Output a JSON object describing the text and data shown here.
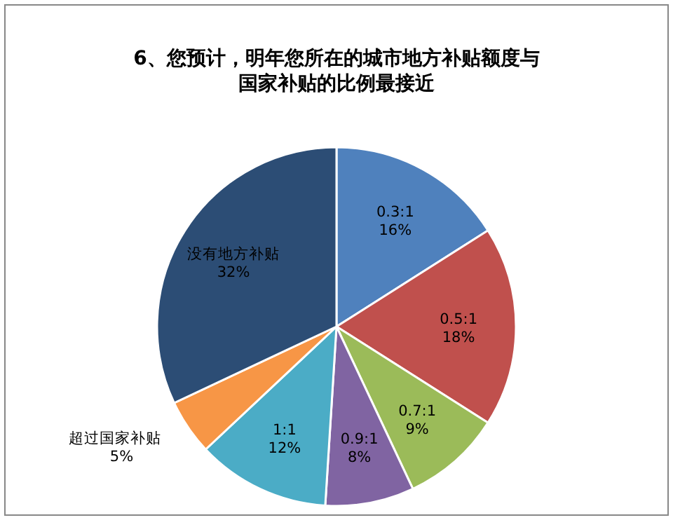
{
  "chart_data": {
    "type": "pie",
    "title": "6、您预计，明年您所在的城市地方补贴额度与国家补贴的比例最接近",
    "categories": [
      "0.3:1",
      "0.5:1",
      "0.7:1",
      "0.9:1",
      "1:1",
      "超过国家补贴",
      "没有地方补贴"
    ],
    "values": [
      16,
      18,
      9,
      8,
      12,
      5,
      32
    ],
    "colors": [
      "#4f81bd",
      "#c0504d",
      "#9bbb59",
      "#8064a2",
      "#4bacc6",
      "#f79646",
      "#2c4d75"
    ],
    "value_labels": [
      "16%",
      "18%",
      "9%",
      "8%",
      "12%",
      "5%",
      "32%"
    ],
    "legend": false
  }
}
